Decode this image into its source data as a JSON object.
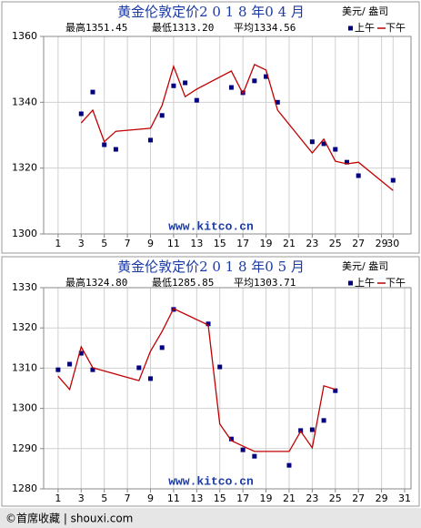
{
  "chart_data": [
    {
      "type": "line",
      "title": "黄金伦敦定价2 0 1 8 年0 4 月",
      "unit": "美元/ 盎司",
      "stats": [
        {
          "name": "最高",
          "text": "1351.45"
        },
        {
          "name": "最低",
          "text": "1313.20"
        },
        {
          "name": "平均",
          "text": "1334.56"
        }
      ],
      "watermark": "www.kitco.cn",
      "x": [
        3,
        4,
        5,
        6,
        9,
        10,
        11,
        12,
        13,
        16,
        17,
        18,
        19,
        20,
        23,
        24,
        25,
        26,
        27,
        30
      ],
      "series": [
        {
          "name": "上午",
          "color": "#000080",
          "marker": "square",
          "values": [
            1336.5,
            1343.1,
            1327.1,
            1325.7,
            1328.5,
            1336,
            1345,
            1345.9,
            1340.6,
            1344.5,
            1342.9,
            1346.5,
            1347.8,
            1340,
            1328,
            1327.4,
            1325.7,
            1321.8,
            1317.7,
            1316.3
          ]
        },
        {
          "name": "下午",
          "color": "#c00000",
          "marker": "line",
          "values": [
            1333.7,
            1337.6,
            1328,
            1331.2,
            1332.1,
            1339,
            1350.9,
            1341.7,
            1344,
            1349.5,
            1342.6,
            1351.45,
            1349.8,
            1337.6,
            1324.6,
            1328.8,
            1322.1,
            1321.3,
            1321.8,
            1313.2
          ]
        }
      ],
      "xlim": [
        -0.25,
        31.55
      ],
      "xticks": [
        1,
        3,
        5,
        7,
        9,
        11,
        13,
        15,
        17,
        19,
        21,
        23,
        25,
        27,
        29,
        30
      ],
      "ylim": [
        1300,
        1360
      ],
      "yticks": [
        1300,
        1320,
        1340,
        1360
      ],
      "grid": true
    },
    {
      "type": "line",
      "title": "黄金伦敦定价2 0 1 8 年0 5 月",
      "unit": "美元/ 盎司",
      "stats": [
        {
          "name": "最高",
          "text": "1324.80"
        },
        {
          "name": "最低",
          "text": "1285.85"
        },
        {
          "name": "平均",
          "text": "1303.71"
        }
      ],
      "watermark": "www.kitco.cn",
      "x": [
        1,
        2,
        3,
        4,
        8,
        9,
        10,
        11,
        14,
        15,
        16,
        17,
        18,
        21,
        22,
        23,
        24,
        25
      ],
      "series": [
        {
          "name": "上午",
          "color": "#000080",
          "marker": "square",
          "values": [
            1309.6,
            1311,
            1313.7,
            1309.6,
            1310.1,
            1307.4,
            1315.1,
            1324.6,
            1321,
            1310.3,
            1292.4,
            1289.7,
            1288.1,
            1285.85,
            1294.5,
            1294.7,
            1297,
            1304.4
          ]
        },
        {
          "name": "下午",
          "color": "#c00000",
          "marker": "line",
          "values": [
            1308,
            1304.7,
            1315.3,
            1310.1,
            1306.9,
            1314.2,
            1319.1,
            1324.8,
            1320.7,
            1296.1,
            1292,
            1290.6,
            1289.3,
            1289.3,
            1294.3,
            1290.2,
            1305.6,
            1304.7
          ]
        }
      ],
      "xlim": [
        -0.25,
        31.55
      ],
      "xticks": [
        1,
        3,
        5,
        7,
        9,
        11,
        13,
        15,
        17,
        19,
        21,
        23,
        25,
        27,
        29,
        31
      ],
      "ylim": [
        1280,
        1330
      ],
      "yticks": [
        1280,
        1290,
        1300,
        1310,
        1320,
        1330
      ],
      "grid": true
    }
  ],
  "footer": "©首席收藏 | shouxi.com"
}
